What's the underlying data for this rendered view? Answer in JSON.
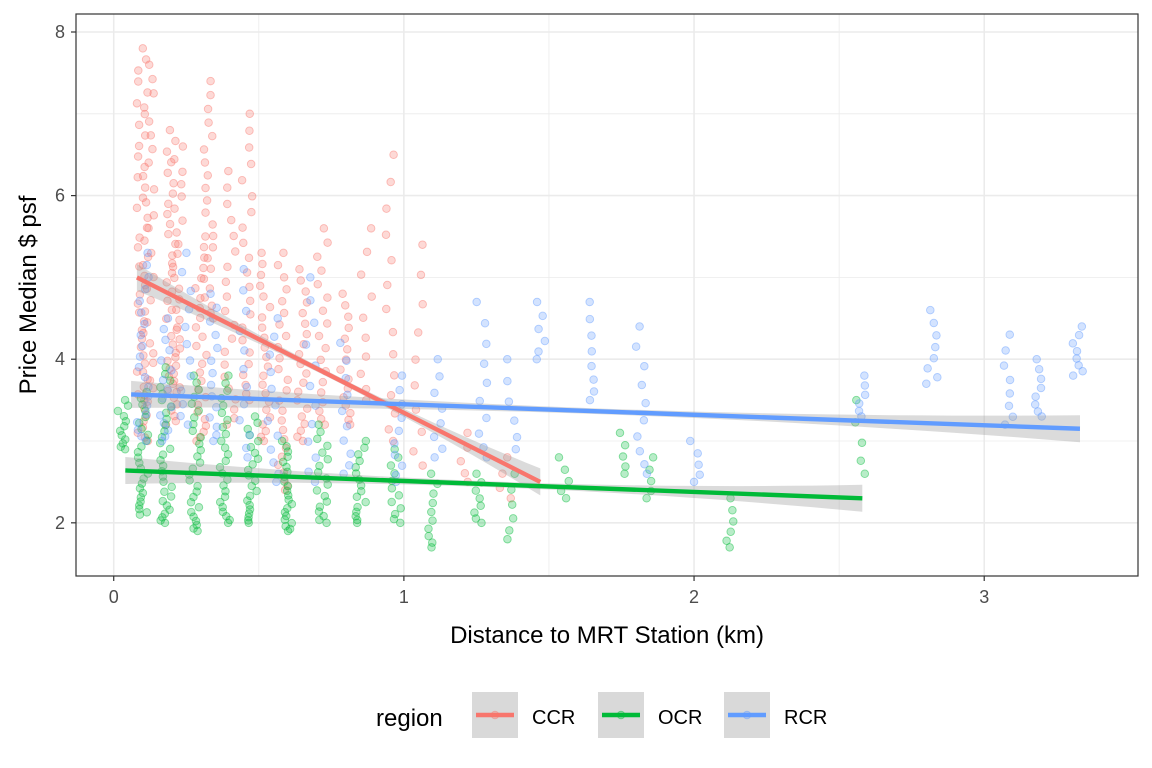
{
  "chart_data": {
    "type": "scatter",
    "xlabel": "Distance to MRT Station (km)",
    "ylabel": "Price Median $ psf",
    "xlim": [
      -0.13,
      3.53
    ],
    "ylim": [
      1.35,
      8.22
    ],
    "x_ticks": [
      0,
      1,
      2,
      3
    ],
    "y_ticks": [
      2,
      4,
      6,
      8
    ],
    "grid": true,
    "legend": {
      "title": "region",
      "position": "bottom"
    },
    "colors": {
      "CCR": "#F8766D",
      "OCR": "#00BA38",
      "RCR": "#619CFF",
      "band": "#999999",
      "panel_border": "#333333",
      "grid": "#ebebeb"
    },
    "series": [
      {
        "name": "CCR",
        "trend": {
          "x0": 0.08,
          "y0": 5.0,
          "x1": 1.47,
          "y1": 2.5
        },
        "clusters": [
          {
            "x": 0.1,
            "ymin": 3.0,
            "ymax": 7.8,
            "n": 45
          },
          {
            "x": 0.12,
            "ymin": 3.5,
            "ymax": 7.6,
            "n": 30
          },
          {
            "x": 0.2,
            "ymin": 3.2,
            "ymax": 6.8,
            "n": 35
          },
          {
            "x": 0.22,
            "ymin": 3.6,
            "ymax": 6.6,
            "n": 25
          },
          {
            "x": 0.3,
            "ymin": 3.0,
            "ymax": 5.5,
            "n": 25
          },
          {
            "x": 0.33,
            "ymin": 4.5,
            "ymax": 7.4,
            "n": 22
          },
          {
            "x": 0.4,
            "ymin": 3.2,
            "ymax": 6.3,
            "n": 20
          },
          {
            "x": 0.46,
            "ymin": 3.5,
            "ymax": 7.0,
            "n": 22
          },
          {
            "x": 0.52,
            "ymin": 3.0,
            "ymax": 5.3,
            "n": 22
          },
          {
            "x": 0.58,
            "ymin": 2.4,
            "ymax": 5.3,
            "n": 25
          },
          {
            "x": 0.65,
            "ymin": 3.0,
            "ymax": 5.1,
            "n": 20
          },
          {
            "x": 0.72,
            "ymin": 3.2,
            "ymax": 5.6,
            "n": 18
          },
          {
            "x": 0.8,
            "ymin": 3.2,
            "ymax": 4.8,
            "n": 15
          },
          {
            "x": 0.87,
            "ymin": 3.5,
            "ymax": 5.6,
            "n": 10
          },
          {
            "x": 0.95,
            "ymin": 3.0,
            "ymax": 6.5,
            "n": 14
          },
          {
            "x": 1.05,
            "ymin": 2.7,
            "ymax": 5.4,
            "n": 10
          },
          {
            "x": 1.2,
            "ymin": 2.5,
            "ymax": 3.1,
            "n": 5
          },
          {
            "x": 1.35,
            "ymin": 2.3,
            "ymax": 2.8,
            "n": 4
          }
        ]
      },
      {
        "name": "OCR",
        "trend": {
          "x0": 0.04,
          "y0": 2.64,
          "x1": 2.58,
          "y1": 2.3
        },
        "clusters": [
          {
            "x": 0.03,
            "ymin": 2.9,
            "ymax": 3.5,
            "n": 12
          },
          {
            "x": 0.1,
            "ymin": 2.1,
            "ymax": 3.6,
            "n": 25
          },
          {
            "x": 0.18,
            "ymin": 2.0,
            "ymax": 3.9,
            "n": 30
          },
          {
            "x": 0.28,
            "ymin": 1.9,
            "ymax": 3.8,
            "n": 28
          },
          {
            "x": 0.38,
            "ymin": 2.0,
            "ymax": 3.8,
            "n": 25
          },
          {
            "x": 0.48,
            "ymin": 2.0,
            "ymax": 3.3,
            "n": 22
          },
          {
            "x": 0.6,
            "ymin": 1.9,
            "ymax": 3.0,
            "n": 22
          },
          {
            "x": 0.72,
            "ymin": 2.0,
            "ymax": 3.2,
            "n": 18
          },
          {
            "x": 0.85,
            "ymin": 2.0,
            "ymax": 3.0,
            "n": 16
          },
          {
            "x": 0.97,
            "ymin": 2.0,
            "ymax": 2.9,
            "n": 12
          },
          {
            "x": 1.1,
            "ymin": 1.7,
            "ymax": 2.6,
            "n": 10
          },
          {
            "x": 1.25,
            "ymin": 2.0,
            "ymax": 2.6,
            "n": 8
          },
          {
            "x": 1.37,
            "ymin": 1.8,
            "ymax": 2.6,
            "n": 6
          },
          {
            "x": 1.55,
            "ymin": 2.3,
            "ymax": 2.8,
            "n": 5
          },
          {
            "x": 1.75,
            "ymin": 2.6,
            "ymax": 3.1,
            "n": 5
          },
          {
            "x": 1.85,
            "ymin": 2.3,
            "ymax": 2.8,
            "n": 5
          },
          {
            "x": 2.13,
            "ymin": 1.7,
            "ymax": 2.3,
            "n": 6
          },
          {
            "x": 2.57,
            "ymin": 2.6,
            "ymax": 3.5,
            "n": 5
          }
        ]
      },
      {
        "name": "RCR",
        "trend": {
          "x0": 0.06,
          "y0": 3.57,
          "x1": 3.33,
          "y1": 3.15
        },
        "clusters": [
          {
            "x": 0.1,
            "ymin": 3.0,
            "ymax": 5.3,
            "n": 20
          },
          {
            "x": 0.18,
            "ymin": 3.0,
            "ymax": 4.5,
            "n": 15
          },
          {
            "x": 0.25,
            "ymin": 3.2,
            "ymax": 5.3,
            "n": 12
          },
          {
            "x": 0.35,
            "ymin": 3.0,
            "ymax": 4.8,
            "n": 14
          },
          {
            "x": 0.45,
            "ymin": 2.8,
            "ymax": 5.1,
            "n": 12
          },
          {
            "x": 0.55,
            "ymin": 2.5,
            "ymax": 4.5,
            "n": 12
          },
          {
            "x": 0.68,
            "ymin": 2.5,
            "ymax": 5.0,
            "n": 12
          },
          {
            "x": 0.8,
            "ymin": 2.6,
            "ymax": 4.2,
            "n": 10
          },
          {
            "x": 0.98,
            "ymin": 2.5,
            "ymax": 3.8,
            "n": 10
          },
          {
            "x": 1.12,
            "ymin": 2.8,
            "ymax": 4.0,
            "n": 8
          },
          {
            "x": 1.27,
            "ymin": 2.8,
            "ymax": 4.7,
            "n": 10
          },
          {
            "x": 1.37,
            "ymin": 2.9,
            "ymax": 4.0,
            "n": 6
          },
          {
            "x": 1.47,
            "ymin": 4.0,
            "ymax": 4.7,
            "n": 6
          },
          {
            "x": 1.65,
            "ymin": 3.5,
            "ymax": 4.7,
            "n": 8
          },
          {
            "x": 1.82,
            "ymin": 2.6,
            "ymax": 4.4,
            "n": 10
          },
          {
            "x": 2.0,
            "ymin": 2.5,
            "ymax": 3.0,
            "n": 5
          },
          {
            "x": 2.57,
            "ymin": 3.3,
            "ymax": 3.8,
            "n": 6
          },
          {
            "x": 2.82,
            "ymin": 3.7,
            "ymax": 4.6,
            "n": 8
          },
          {
            "x": 3.08,
            "ymin": 3.2,
            "ymax": 4.3,
            "n": 8
          },
          {
            "x": 3.18,
            "ymin": 3.3,
            "ymax": 4.0,
            "n": 8
          },
          {
            "x": 3.32,
            "ymin": 3.8,
            "ymax": 4.4,
            "n": 8
          }
        ]
      }
    ]
  }
}
